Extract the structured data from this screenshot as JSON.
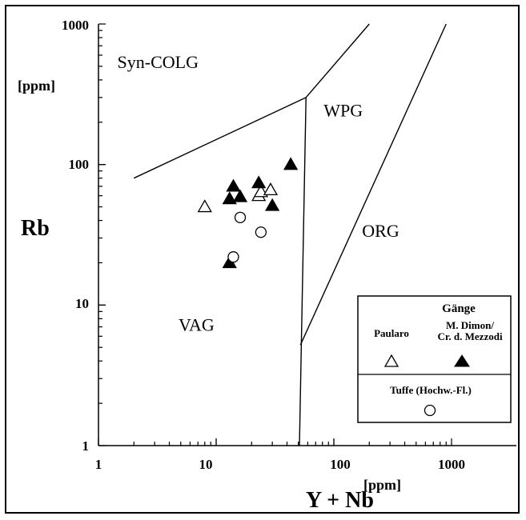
{
  "chart_data": {
    "type": "scatter",
    "xscale": "log",
    "yscale": "log",
    "xlim": [
      1,
      1000
    ],
    "ylim": [
      1,
      1000
    ],
    "x_ticks": [
      1,
      10,
      100,
      1000
    ],
    "y_ticks": [
      1,
      10,
      100,
      1000
    ],
    "x_tick_labels": [
      "1",
      "10",
      "100",
      "1000"
    ],
    "y_tick_labels": [
      "1",
      "10",
      "100",
      "1000"
    ],
    "xlabel": "Y + Nb",
    "xunit": "[ppm]",
    "ylabel": "Rb",
    "yunit": "[ppm]",
    "fields": [
      {
        "label": "Syn-COLG",
        "at": [
          3.2,
          540
        ]
      },
      {
        "label": "WPG",
        "at": [
          120,
          245
        ]
      },
      {
        "label": "ORG",
        "at": [
          250,
          34
        ]
      },
      {
        "label": "VAG",
        "at": [
          6.8,
          7.3
        ]
      }
    ],
    "boundaries": [
      [
        [
          2,
          80
        ],
        [
          58,
          300
        ]
      ],
      [
        [
          58,
          300
        ],
        [
          51,
          1
        ]
      ],
      [
        [
          58,
          300
        ],
        [
          200,
          1000
        ]
      ],
      [
        [
          52,
          5.2
        ],
        [
          900,
          1000
        ]
      ]
    ],
    "series": [
      {
        "name": "Paularo",
        "marker": "open-triangle",
        "points": [
          [
            8,
            50
          ],
          [
            23,
            60
          ],
          [
            24,
            64
          ],
          [
            29,
            66
          ]
        ]
      },
      {
        "name": "M. Dimon/ Cr. d. Mezzodi",
        "marker": "filled-triangle",
        "points": [
          [
            13,
            20
          ],
          [
            13,
            57
          ],
          [
            14,
            70
          ],
          [
            16,
            59
          ],
          [
            23,
            74
          ],
          [
            30,
            51
          ],
          [
            43,
            100
          ]
        ]
      },
      {
        "name": "Tuffe (Hochw.-Fl.)",
        "marker": "open-circle",
        "points": [
          [
            14,
            22
          ],
          [
            16,
            42
          ],
          [
            24,
            33
          ]
        ]
      }
    ],
    "legend": {
      "position": "bottom-right",
      "title": "Gänge",
      "entries": [
        "Paularo",
        "M. Dimon/",
        "Cr. d. Mezzodi",
        "Tuffe (Hochw.-Fl.)"
      ]
    }
  }
}
